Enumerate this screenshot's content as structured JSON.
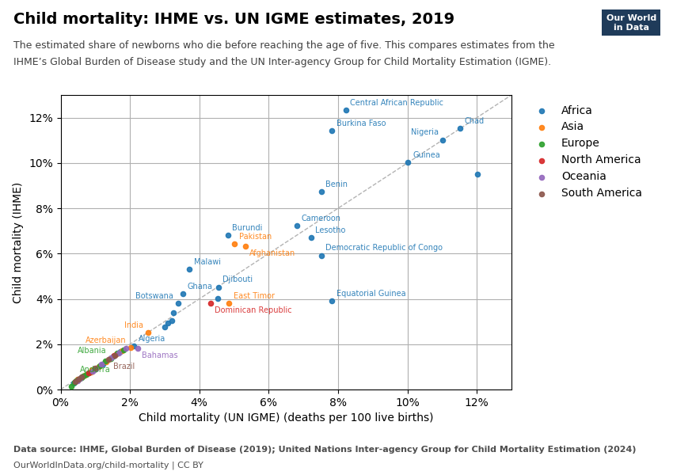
{
  "chart_data": {
    "type": "scatter",
    "title": "Child mortality: IHME vs. UN IGME estimates, 2019",
    "subtitle": [
      "The estimated share of newborns who die before reaching the age of five. This compares estimates from the",
      "IHME’s Global Burden of Disease study and the UN Inter-agency Group for Child Mortality Estimation (IGME)."
    ],
    "y_label": "Child mortality (IHME)",
    "x_label": "Child mortality (UN IGME) (deaths per 100 live births)",
    "notes": [
      "Data source: IHME, Global Burden of Disease (2019); United Nations Inter-agency Group for Child Mortality Estimation (2024)",
      "OurWorldInData.org/child-mortality | CC BY"
    ],
    "logo": [
      "Our World",
      "in Data"
    ],
    "marker": "o",
    "grid": true,
    "legend": "upper left",
    "xlim": [
      0,
      13
    ],
    "ylim": [
      0,
      13
    ],
    "xticks": [
      {
        "value": 0,
        "label": "0%"
      },
      {
        "value": 2,
        "label": "2%"
      },
      {
        "value": 4,
        "label": "4%"
      },
      {
        "value": 6,
        "label": "6%"
      },
      {
        "value": 8,
        "label": "8%"
      },
      {
        "value": 10,
        "label": "10%"
      },
      {
        "value": 12,
        "label": "12%"
      }
    ],
    "yticks": [
      {
        "value": 0,
        "label": "0%"
      },
      {
        "value": 2,
        "label": "2%"
      },
      {
        "value": 4,
        "label": "4%"
      },
      {
        "value": 6,
        "label": "6%"
      },
      {
        "value": 8,
        "label": "8%"
      },
      {
        "value": 10,
        "label": "10%"
      },
      {
        "value": 12,
        "label": "12%"
      }
    ],
    "reference_line": {
      "x": [
        0,
        13
      ],
      "y": [
        0,
        13
      ],
      "line_style": "dashed"
    },
    "series": [
      {
        "name": "Africa",
        "x": [
          0.38,
          1.22,
          1.52,
          1.72,
          2.12,
          3.0,
          3.1,
          3.2,
          3.25,
          3.38,
          3.52,
          3.72,
          4.52,
          4.55,
          4.82,
          6.82,
          7.22,
          7.52,
          7.52,
          7.82,
          7.82,
          8.22,
          10.02,
          11.02,
          11.52,
          12.02
        ],
        "y": [
          0.28,
          1.12,
          1.46,
          1.66,
          1.92,
          2.75,
          2.95,
          3.05,
          3.38,
          3.82,
          4.22,
          5.32,
          4.02,
          4.52,
          6.82,
          7.22,
          6.72,
          5.92,
          8.72,
          3.92,
          11.42,
          12.32,
          10.02,
          11.02,
          11.52,
          9.52
        ],
        "point_labels": [
          null,
          null,
          null,
          null,
          "Algeria",
          null,
          null,
          null,
          null,
          "Botswana",
          "Ghana",
          "Malawi",
          null,
          "Djibouti",
          "Burundi",
          "Cameroon",
          "Lesotho",
          "Democratic Republic of Congo",
          "Benin",
          "Equatorial Guinea",
          "Burkina Faso",
          "Central African Republic",
          "Guinea",
          "Nigeria",
          "Chad",
          null
        ]
      },
      {
        "name": "Asia",
        "x": [
          0.7,
          0.5,
          0.88,
          0.9,
          1.1,
          1.32,
          1.42,
          1.62,
          1.78,
          2.02,
          2.52,
          5.02,
          5.32,
          4.85
        ],
        "y": [
          0.62,
          0.45,
          0.78,
          0.86,
          1.0,
          1.22,
          1.36,
          1.56,
          1.72,
          1.86,
          2.52,
          6.42,
          6.32,
          3.82
        ],
        "point_labels": [
          null,
          null,
          null,
          null,
          null,
          null,
          null,
          null,
          null,
          "Azerbaijan",
          "India",
          "Pakistan",
          "Afghanistan",
          "East Timor"
        ]
      },
      {
        "name": "Europe",
        "x": [
          0.3,
          0.45,
          0.5,
          0.4,
          0.55,
          0.6,
          0.65,
          0.75,
          0.82,
          0.96,
          1.12,
          1.28,
          1.46,
          1.64,
          1.82
        ],
        "y": [
          0.15,
          0.38,
          0.42,
          0.32,
          0.48,
          0.52,
          0.58,
          0.65,
          0.72,
          0.86,
          1.06,
          1.26,
          1.38,
          1.61,
          1.76
        ],
        "point_labels": [
          "Andorra",
          null,
          null,
          null,
          null,
          null,
          null,
          null,
          null,
          null,
          null,
          null,
          "Albania",
          null,
          null
        ]
      },
      {
        "name": "North America",
        "x": [
          0.8,
          1.54,
          4.32
        ],
        "y": [
          0.72,
          1.52,
          3.82
        ],
        "point_labels": [
          null,
          null,
          "Dominican Republic"
        ]
      },
      {
        "name": "Oceania",
        "x": [
          0.55,
          0.48,
          0.92,
          1.02,
          1.18,
          1.44,
          1.68,
          1.88,
          2.22
        ],
        "y": [
          0.5,
          0.38,
          0.82,
          0.92,
          1.12,
          1.41,
          1.62,
          1.81,
          1.82
        ],
        "point_labels": [
          null,
          null,
          null,
          null,
          null,
          null,
          null,
          null,
          "Bahamas"
        ]
      },
      {
        "name": "South America",
        "x": [
          0.6,
          0.42,
          0.52,
          1.0,
          1.38,
          1.56
        ],
        "y": [
          0.55,
          0.36,
          0.46,
          0.96,
          1.32,
          1.51
        ],
        "point_labels": [
          null,
          null,
          null,
          null,
          "Brazil",
          null
        ]
      }
    ]
  }
}
